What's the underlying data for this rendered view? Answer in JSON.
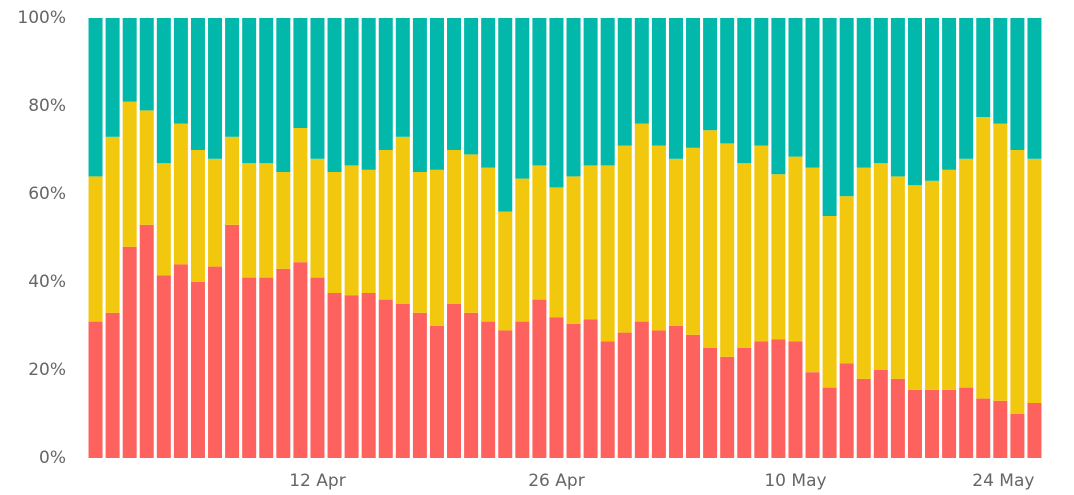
{
  "chart_data": {
    "type": "stacked_bar",
    "categories": [
      null,
      null,
      null,
      null,
      null,
      null,
      null,
      null,
      null,
      null,
      null,
      null,
      null,
      "12 Apr",
      null,
      null,
      null,
      null,
      null,
      null,
      null,
      null,
      null,
      null,
      null,
      null,
      null,
      "26 Apr",
      null,
      null,
      null,
      null,
      null,
      null,
      null,
      null,
      null,
      null,
      null,
      null,
      null,
      "10 May",
      null,
      null,
      null,
      null,
      null,
      null,
      null,
      null,
      null,
      null,
      null,
      null,
      null,
      "24 May"
    ],
    "series": [
      {
        "color": "#fd625e",
        "values": [
          31,
          33,
          48,
          53,
          41.5,
          44,
          40,
          43.5,
          53,
          41,
          41,
          43,
          44.5,
          41,
          37.5,
          37,
          37.5,
          36,
          35,
          33,
          30,
          35,
          33,
          31,
          29,
          31,
          36,
          32,
          30.5,
          31.5,
          26.5,
          28.5,
          31,
          29,
          30,
          28,
          25,
          23,
          25,
          26.5,
          27,
          26.5,
          19.5,
          16,
          21.5,
          18,
          20,
          18,
          15.5,
          15.5,
          15.5,
          16,
          13.5,
          13,
          10,
          12.5
        ]
      },
      {
        "color": "#f2c80f",
        "values": [
          33,
          40,
          33,
          26,
          25.5,
          32,
          30,
          24.5,
          20,
          26,
          26,
          22,
          30.5,
          27,
          27.5,
          29.5,
          28,
          34,
          38,
          32,
          35.5,
          35,
          36,
          35,
          27,
          32.5,
          30.5,
          29.5,
          33.5,
          35,
          40,
          42.5,
          45,
          42,
          38,
          42.5,
          49.5,
          48.5,
          42,
          44.5,
          37.5,
          42,
          46.5,
          39,
          38,
          48,
          47,
          46,
          46.5,
          47.5,
          50,
          52,
          64,
          63,
          60,
          55.5
        ]
      },
      {
        "color": "#01b8aa",
        "values": [
          36,
          27,
          19,
          21,
          33,
          24,
          30,
          32,
          27,
          33,
          33,
          35,
          25,
          32,
          35,
          33.5,
          34.5,
          30,
          27,
          35,
          34.5,
          30,
          31,
          34,
          44,
          36.5,
          33.5,
          38.5,
          36,
          33.5,
          33.5,
          29,
          24,
          29,
          32,
          29.5,
          25.5,
          28.5,
          33,
          29,
          35.5,
          31.5,
          34,
          45,
          40.5,
          34,
          33,
          36,
          38,
          37,
          34.5,
          32,
          22.5,
          24,
          30,
          32
        ]
      }
    ],
    "ylim": [
      0,
      100
    ],
    "yticks": [
      {
        "value": 0,
        "label": "0%"
      },
      {
        "value": 20,
        "label": "20%"
      },
      {
        "value": 40,
        "label": "40%"
      },
      {
        "value": 60,
        "label": "60%"
      },
      {
        "value": 80,
        "label": "80%"
      },
      {
        "value": 100,
        "label": "100%"
      }
    ],
    "grid": false
  }
}
